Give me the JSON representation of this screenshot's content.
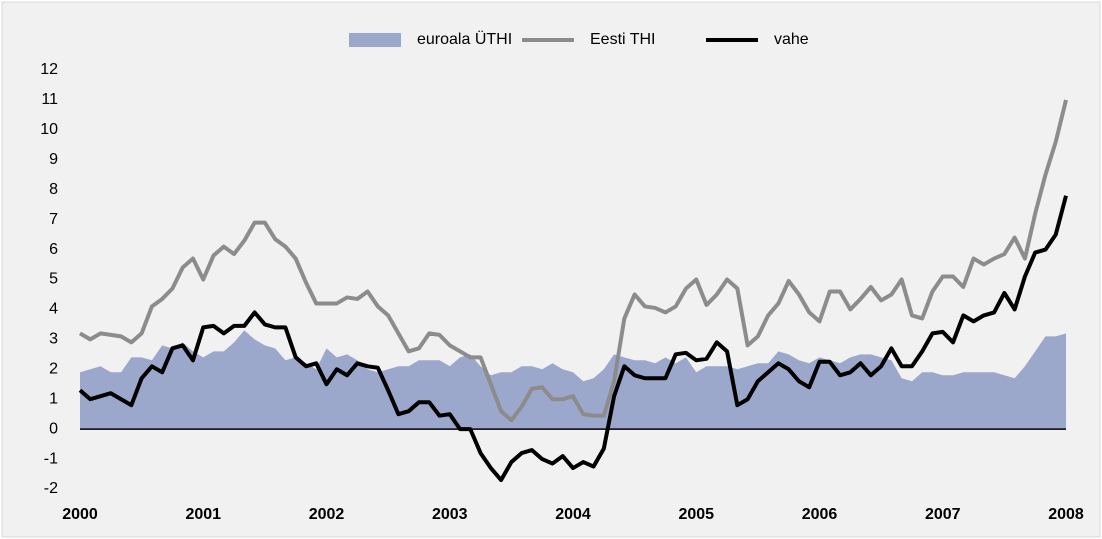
{
  "chart_data": {
    "type": "line",
    "categories": [
      "2000",
      null,
      null,
      null,
      null,
      null,
      null,
      null,
      null,
      null,
      null,
      null,
      "2001",
      null,
      null,
      null,
      null,
      null,
      null,
      null,
      null,
      null,
      null,
      null,
      "2002",
      null,
      null,
      null,
      null,
      null,
      null,
      null,
      null,
      null,
      null,
      null,
      "2003",
      null,
      null,
      null,
      null,
      null,
      null,
      null,
      null,
      null,
      null,
      null,
      "2004",
      null,
      null,
      null,
      null,
      null,
      null,
      null,
      null,
      null,
      null,
      null,
      "2005",
      null,
      null,
      null,
      null,
      null,
      null,
      null,
      null,
      null,
      null,
      null,
      "2006",
      null,
      null,
      null,
      null,
      null,
      null,
      null,
      null,
      null,
      null,
      null,
      "2007",
      null,
      null,
      null,
      null,
      null,
      null,
      null,
      null,
      null,
      null,
      null,
      "2008"
    ],
    "series": [
      {
        "name": "euroala ÜTHI",
        "kind": "area",
        "color": "#9ba8cc",
        "values": [
          1.9,
          2.0,
          2.1,
          1.9,
          1.9,
          2.4,
          2.4,
          2.3,
          2.8,
          2.7,
          2.9,
          2.6,
          2.4,
          2.6,
          2.6,
          2.9,
          3.3,
          3.0,
          2.8,
          2.7,
          2.3,
          2.4,
          2.2,
          2.0,
          2.7,
          2.4,
          2.5,
          2.3,
          2.0,
          1.9,
          2.0,
          2.1,
          2.1,
          2.3,
          2.3,
          2.3,
          2.1,
          2.4,
          2.5,
          2.1,
          1.8,
          1.9,
          1.9,
          2.1,
          2.1,
          2.0,
          2.2,
          2.0,
          1.9,
          1.6,
          1.7,
          2.0,
          2.5,
          2.4,
          2.3,
          2.3,
          2.2,
          2.4,
          2.2,
          2.4,
          1.9,
          2.1,
          2.1,
          2.1,
          2.0,
          2.1,
          2.2,
          2.2,
          2.6,
          2.5,
          2.3,
          2.2,
          2.4,
          2.3,
          2.2,
          2.4,
          2.5,
          2.5,
          2.4,
          2.3,
          1.7,
          1.6,
          1.9,
          1.9,
          1.8,
          1.8,
          1.9,
          1.9,
          1.9,
          1.9,
          1.8,
          1.7,
          2.1,
          2.6,
          3.1,
          3.1,
          3.2
        ]
      },
      {
        "name": "Eesti THI",
        "kind": "line",
        "color": "#8c8c8c",
        "values": [
          3.2,
          3.0,
          3.2,
          3.15,
          3.1,
          2.9,
          3.2,
          4.1,
          4.35,
          4.7,
          5.4,
          5.7,
          5.0,
          5.8,
          6.1,
          5.85,
          6.3,
          6.9,
          6.9,
          6.35,
          6.1,
          5.7,
          4.9,
          4.2,
          4.2,
          4.2,
          4.4,
          4.35,
          4.6,
          4.1,
          3.8,
          3.2,
          2.6,
          2.7,
          3.2,
          3.15,
          2.8,
          2.6,
          2.4,
          2.4,
          1.5,
          0.6,
          0.3,
          0.75,
          1.35,
          1.4,
          1.0,
          1.0,
          1.1,
          0.5,
          0.45,
          0.45,
          1.6,
          3.7,
          4.5,
          4.1,
          4.05,
          3.9,
          4.1,
          4.7,
          5.0,
          4.15,
          4.5,
          5.0,
          4.7,
          2.8,
          3.1,
          3.8,
          4.2,
          4.95,
          4.5,
          3.9,
          3.6,
          4.6,
          4.6,
          4.0,
          4.35,
          4.75,
          4.3,
          4.5,
          5.0,
          3.8,
          3.7,
          4.6,
          5.1,
          5.1,
          4.75,
          5.7,
          5.5,
          5.7,
          5.85,
          6.4,
          5.7,
          7.2,
          8.5,
          9.6,
          11.0
        ]
      },
      {
        "name": "vahe",
        "kind": "line",
        "color": "#000000",
        "values": [
          1.3,
          1.0,
          1.1,
          1.2,
          1.0,
          0.8,
          1.7,
          2.1,
          1.9,
          2.7,
          2.8,
          2.3,
          3.4,
          3.45,
          3.2,
          3.45,
          3.45,
          3.9,
          3.5,
          3.4,
          3.4,
          2.4,
          2.1,
          2.2,
          1.5,
          2.0,
          1.8,
          2.2,
          2.1,
          2.05,
          1.3,
          0.5,
          0.6,
          0.9,
          0.9,
          0.45,
          0.5,
          0.0,
          0.0,
          -0.8,
          -1.3,
          -1.7,
          -1.1,
          -0.8,
          -0.7,
          -1.0,
          -1.15,
          -0.9,
          -1.3,
          -1.1,
          -1.25,
          -0.65,
          1.1,
          2.1,
          1.8,
          1.7,
          1.7,
          1.7,
          2.5,
          2.55,
          2.3,
          2.35,
          2.9,
          2.6,
          0.8,
          1.0,
          1.6,
          1.9,
          2.2,
          2.0,
          1.6,
          1.4,
          2.25,
          2.25,
          1.8,
          1.9,
          2.2,
          1.8,
          2.1,
          2.7,
          2.1,
          2.1,
          2.6,
          3.2,
          3.25,
          2.9,
          3.8,
          3.6,
          3.8,
          3.9,
          4.55,
          4.0,
          5.1,
          5.9,
          6.0,
          6.5,
          7.8
        ]
      }
    ],
    "ylim": [
      -2,
      12
    ],
    "yticks": [
      -2,
      -1,
      0,
      1,
      2,
      3,
      4,
      5,
      6,
      7,
      8,
      9,
      10,
      11,
      12
    ],
    "grid": false,
    "legend": "top"
  }
}
